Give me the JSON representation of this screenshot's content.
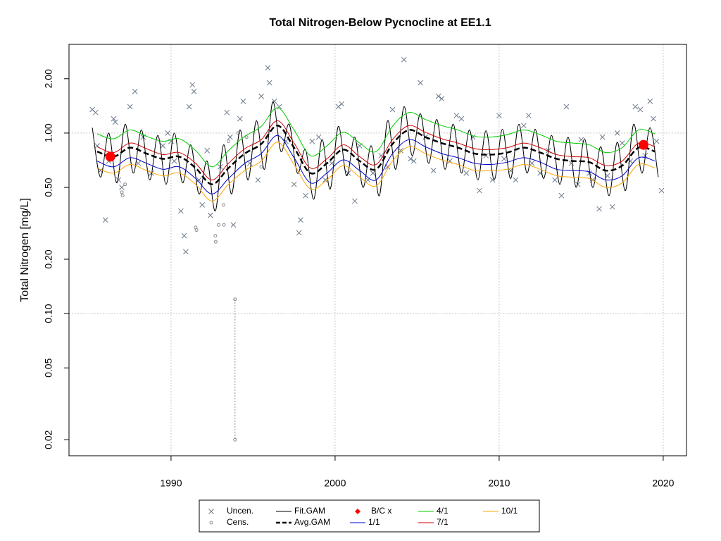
{
  "chart_data": {
    "type": "line",
    "title": "Total Nitrogen-Below Pycnocline at EE1.1",
    "ylabel": "Total Nitrogen [mg/L]",
    "log_y": true,
    "xlim": [
      1983.78,
      2021.42
    ],
    "ylim": [
      0.0163,
      3.1
    ],
    "xticks": [
      1990,
      2000,
      2010,
      2020
    ],
    "yticks": [
      {
        "value": 2,
        "label": "2.00"
      },
      {
        "value": 1,
        "label": "1.00"
      },
      {
        "value": 0.5,
        "label": "0.50"
      },
      {
        "value": 0.2,
        "label": "0.20"
      },
      {
        "value": 0.1,
        "label": "0.10"
      },
      0.05,
      0.02
    ],
    "xgrid": true,
    "ygrid": [
      1,
      0.1
    ],
    "legend": "bottom",
    "series": [
      {
        "name": "Uncen.",
        "type": "scatter",
        "marker": "x",
        "color": "#6c7a8c",
        "x": [
          1985.2,
          1985.4,
          1985.5,
          1985.7,
          1986.0,
          1986.2,
          1986.5,
          1986.6,
          1986.8,
          1987.0,
          1987.5,
          1987.8,
          1988.0,
          1988.3,
          1988.8,
          1989.5,
          1989.8,
          1990.0,
          1990.2,
          1990.6,
          1990.8,
          1990.9,
          1991.1,
          1991.3,
          1991.4,
          1991.7,
          1991.9,
          1992.2,
          1992.4,
          1993.0,
          1993.4,
          1993.6,
          1993.8,
          1994.2,
          1994.4,
          1994.8,
          1995.3,
          1995.5,
          1995.9,
          1996.0,
          1996.3,
          1996.6,
          1997.0,
          1997.5,
          1997.8,
          1997.9,
          1998.2,
          1998.6,
          1999.0,
          1999.4,
          1999.8,
          2000.2,
          2000.4,
          2000.8,
          2001.2,
          2001.5,
          2002.0,
          2002.3,
          2002.8,
          2003.2,
          2003.5,
          2004.0,
          2004.2,
          2004.6,
          2004.8,
          2005.2,
          2005.5,
          2006.0,
          2006.3,
          2006.5,
          2007.0,
          2007.4,
          2007.7,
          2008.0,
          2008.4,
          2008.8,
          2009.2,
          2009.6,
          2010.0,
          2010.3,
          2010.7,
          2011.0,
          2011.5,
          2011.8,
          2012.0,
          2012.5,
          2013.0,
          2013.4,
          2013.8,
          2014.1,
          2014.4,
          2014.8,
          2015.0,
          2015.5,
          2015.7,
          2016.1,
          2016.3,
          2016.6,
          2016.9,
          2017.2,
          2017.5,
          2018.0,
          2018.3,
          2018.6,
          2018.9,
          2019.2,
          2019.4,
          2019.6,
          2019.9
        ],
        "values": [
          1.35,
          1.3,
          0.85,
          0.62,
          0.33,
          0.7,
          1.2,
          1.15,
          0.55,
          0.5,
          1.4,
          1.7,
          0.68,
          0.95,
          0.6,
          0.85,
          1.0,
          0.9,
          0.7,
          0.37,
          0.27,
          0.22,
          1.4,
          1.85,
          1.7,
          0.55,
          0.4,
          0.8,
          0.35,
          0.65,
          1.3,
          0.95,
          0.31,
          1.2,
          1.5,
          0.68,
          0.55,
          1.6,
          2.3,
          1.9,
          1.5,
          1.4,
          0.9,
          0.52,
          0.28,
          0.33,
          0.45,
          0.9,
          0.95,
          0.55,
          0.68,
          1.4,
          1.45,
          0.6,
          0.42,
          0.85,
          0.55,
          0.6,
          0.75,
          0.65,
          1.35,
          0.8,
          2.55,
          0.72,
          0.7,
          1.9,
          0.95,
          0.62,
          1.6,
          1.55,
          0.7,
          1.25,
          1.2,
          0.6,
          0.95,
          0.48,
          0.75,
          0.55,
          1.25,
          0.72,
          0.62,
          0.55,
          1.1,
          1.25,
          0.68,
          0.6,
          0.8,
          0.55,
          0.45,
          1.4,
          0.68,
          0.52,
          0.92,
          0.6,
          0.55,
          0.38,
          0.95,
          0.58,
          0.39,
          1.0,
          0.88,
          0.7,
          1.4,
          1.35,
          0.75,
          1.5,
          1.2,
          0.9,
          0.48
        ]
      },
      {
        "name": "Cens.",
        "type": "scatter",
        "marker": "o",
        "color": "#8a8a8a",
        "x": [
          1987.0,
          1987.05,
          1987.2,
          1991.5,
          1991.55,
          1992.7,
          1992.72,
          1992.9,
          1993.2,
          1993.22,
          1993.5,
          1993.9,
          1994.1,
          1994.6,
          1995.5
        ],
        "values": [
          0.47,
          0.45,
          0.52,
          0.3,
          0.29,
          0.27,
          0.25,
          0.31,
          0.4,
          0.31,
          0.9,
          0.12,
          1.0,
          0.95,
          0.65
        ],
        "lower": [
          0.47,
          0.45,
          0.52,
          0.3,
          0.29,
          0.27,
          0.25,
          0.31,
          0.4,
          0.31,
          0.9,
          0.02,
          1.0,
          0.95,
          0.65
        ]
      },
      {
        "name": "Fit.GAM",
        "type": "line",
        "color": "#000000",
        "width": 1,
        "x": [
          1985.2,
          1985.7,
          1986.2,
          1986.7,
          1987.2,
          1987.7,
          1988.2,
          1988.7,
          1989.2,
          1989.7,
          1990.2,
          1990.7,
          1991.2,
          1991.7,
          1992.2,
          1992.7,
          1993.2,
          1993.7,
          1994.2,
          1994.7,
          1995.2,
          1995.7,
          1996.2,
          1996.7,
          1997.2,
          1997.7,
          1998.2,
          1998.7,
          1999.2,
          1999.7,
          2000.2,
          2000.7,
          2001.2,
          2001.7,
          2002.2,
          2002.7,
          2003.2,
          2003.7,
          2004.2,
          2004.7,
          2005.2,
          2005.7,
          2006.2,
          2006.7,
          2007.2,
          2007.7,
          2008.2,
          2008.7,
          2009.2,
          2009.7,
          2010.2,
          2010.7,
          2011.2,
          2011.7,
          2012.2,
          2012.7,
          2013.2,
          2013.7,
          2014.2,
          2014.7,
          2015.2,
          2015.7,
          2016.2,
          2016.7,
          2017.2,
          2017.7,
          2018.2,
          2018.7,
          2019.2,
          2019.7
        ],
        "values": [
          1.07,
          0.57,
          1.0,
          0.53,
          1.12,
          0.6,
          1.04,
          0.55,
          0.97,
          0.52,
          1.0,
          0.53,
          0.86,
          0.46,
          0.7,
          0.37,
          0.86,
          0.46,
          1.04,
          0.55,
          1.17,
          0.63,
          1.49,
          0.79,
          1.12,
          0.6,
          0.81,
          0.43,
          0.92,
          0.49,
          1.09,
          0.58,
          0.95,
          0.5,
          0.85,
          0.45,
          1.17,
          0.63,
          1.4,
          0.75,
          1.28,
          0.68,
          1.19,
          0.63,
          1.12,
          0.6,
          1.04,
          0.55,
          1.03,
          0.55,
          1.05,
          0.56,
          1.12,
          0.6,
          1.05,
          0.56,
          0.97,
          0.52,
          0.95,
          0.5,
          0.93,
          0.5,
          0.84,
          0.45,
          0.89,
          0.48,
          1.12,
          0.6,
          1.07,
          0.57
        ]
      },
      {
        "name": "Avg.GAM",
        "type": "line",
        "color": "#000000",
        "width": 2.5,
        "dash": true,
        "x": [
          1985.5,
          1986.5,
          1987.5,
          1988.5,
          1989.5,
          1990.5,
          1991.5,
          1992.5,
          1993.5,
          1994.5,
          1995.5,
          1996.5,
          1997.5,
          1998.5,
          1999.5,
          2000.5,
          2001.5,
          2002.5,
          2003.5,
          2004.5,
          2005.5,
          2006.5,
          2007.5,
          2008.5,
          2009.5,
          2010.5,
          2011.5,
          2012.5,
          2013.5,
          2014.5,
          2015.5,
          2016.5,
          2017.5,
          2018.5,
          2019.5
        ],
        "values": [
          0.79,
          0.74,
          0.83,
          0.77,
          0.72,
          0.74,
          0.64,
          0.52,
          0.64,
          0.77,
          0.87,
          1.1,
          0.83,
          0.6,
          0.68,
          0.81,
          0.7,
          0.63,
          0.87,
          1.04,
          0.95,
          0.88,
          0.83,
          0.77,
          0.76,
          0.78,
          0.83,
          0.78,
          0.72,
          0.7,
          0.69,
          0.62,
          0.66,
          0.83,
          0.79
        ]
      },
      {
        "name": "B/C x",
        "type": "scatter",
        "marker": "dot",
        "color": "#ff0000",
        "x": [
          1986.3,
          2018.8
        ],
        "values": [
          0.74,
          0.86
        ]
      },
      {
        "name": "1/1",
        "type": "line",
        "color": "#0000cd",
        "width": 1,
        "x": [
          1985.5,
          1986.5,
          1987.5,
          1988.5,
          1989.5,
          1990.5,
          1991.5,
          1992.5,
          1993.5,
          1994.5,
          1995.5,
          1996.5,
          1997.5,
          1998.5,
          1999.5,
          2000.5,
          2001.5,
          2002.5,
          2003.5,
          2004.5,
          2005.5,
          2006.5,
          2007.5,
          2008.5,
          2009.5,
          2010.5,
          2011.5,
          2012.5,
          2013.5,
          2014.5,
          2015.5,
          2016.5,
          2017.5,
          2018.5,
          2019.5
        ],
        "values": [
          0.7,
          0.65,
          0.73,
          0.68,
          0.63,
          0.65,
          0.56,
          0.46,
          0.56,
          0.68,
          0.77,
          0.97,
          0.73,
          0.53,
          0.6,
          0.71,
          0.62,
          0.55,
          0.77,
          0.92,
          0.84,
          0.77,
          0.73,
          0.68,
          0.67,
          0.69,
          0.73,
          0.69,
          0.63,
          0.62,
          0.61,
          0.55,
          0.58,
          0.73,
          0.7
        ]
      },
      {
        "name": "4/1",
        "type": "line",
        "color": "#00cc00",
        "width": 1,
        "x": [
          1985.5,
          1986.5,
          1987.5,
          1988.5,
          1989.5,
          1990.5,
          1991.5,
          1992.5,
          1993.5,
          1994.5,
          1995.5,
          1996.5,
          1997.5,
          1998.5,
          1999.5,
          2000.5,
          2001.5,
          2002.5,
          2003.5,
          2004.5,
          2005.5,
          2006.5,
          2007.5,
          2008.5,
          2009.5,
          2010.5,
          2011.5,
          2012.5,
          2013.5,
          2014.5,
          2015.5,
          2016.5,
          2017.5,
          2018.5,
          2019.5
        ],
        "values": [
          0.99,
          0.93,
          1.04,
          0.96,
          0.9,
          0.93,
          0.8,
          0.65,
          0.8,
          0.96,
          1.09,
          1.38,
          1.04,
          0.75,
          0.85,
          1.01,
          0.88,
          0.79,
          1.09,
          1.3,
          1.19,
          1.1,
          1.04,
          0.96,
          0.95,
          0.98,
          1.04,
          0.98,
          0.9,
          0.88,
          0.86,
          0.78,
          0.83,
          1.04,
          0.99
        ]
      },
      {
        "name": "7/1",
        "type": "line",
        "color": "#cc0000",
        "width": 1,
        "x": [
          1985.5,
          1986.5,
          1987.5,
          1988.5,
          1989.5,
          1990.5,
          1991.5,
          1992.5,
          1993.5,
          1994.5,
          1995.5,
          1996.5,
          1997.5,
          1998.5,
          1999.5,
          2000.5,
          2001.5,
          2002.5,
          2003.5,
          2004.5,
          2005.5,
          2006.5,
          2007.5,
          2008.5,
          2009.5,
          2010.5,
          2011.5,
          2012.5,
          2013.5,
          2014.5,
          2015.5,
          2016.5,
          2017.5,
          2018.5,
          2019.5
        ],
        "values": [
          0.84,
          0.78,
          0.88,
          0.82,
          0.76,
          0.78,
          0.68,
          0.55,
          0.68,
          0.82,
          0.92,
          1.17,
          0.88,
          0.64,
          0.72,
          0.86,
          0.74,
          0.67,
          0.92,
          1.1,
          1.01,
          0.93,
          0.88,
          0.82,
          0.81,
          0.83,
          0.88,
          0.83,
          0.76,
          0.74,
          0.73,
          0.66,
          0.7,
          0.88,
          0.84
        ]
      },
      {
        "name": "10/1",
        "type": "line",
        "color": "#ffa500",
        "width": 1,
        "x": [
          1985.5,
          1986.5,
          1987.5,
          1988.5,
          1989.5,
          1990.5,
          1991.5,
          1992.5,
          1993.5,
          1994.5,
          1995.5,
          1996.5,
          1997.5,
          1998.5,
          1999.5,
          2000.5,
          2001.5,
          2002.5,
          2003.5,
          2004.5,
          2005.5,
          2006.5,
          2007.5,
          2008.5,
          2009.5,
          2010.5,
          2011.5,
          2012.5,
          2013.5,
          2014.5,
          2015.5,
          2016.5,
          2017.5,
          2018.5,
          2019.5
        ],
        "values": [
          0.64,
          0.6,
          0.67,
          0.62,
          0.58,
          0.6,
          0.52,
          0.42,
          0.52,
          0.62,
          0.7,
          0.89,
          0.67,
          0.49,
          0.55,
          0.66,
          0.57,
          0.51,
          0.7,
          0.84,
          0.77,
          0.71,
          0.67,
          0.62,
          0.62,
          0.63,
          0.67,
          0.63,
          0.58,
          0.57,
          0.56,
          0.5,
          0.53,
          0.67,
          0.64
        ]
      }
    ]
  }
}
